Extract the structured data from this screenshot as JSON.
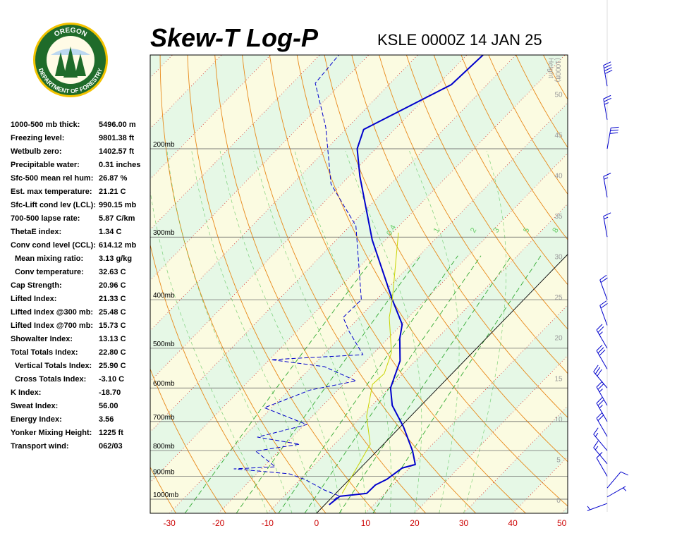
{
  "header": {
    "title": "Skew-T Log-P",
    "station": "KSLE 0000Z 14 JAN 25"
  },
  "logo": {
    "top": "OREGON",
    "bottom": "DEPARTMENT OF FORESTRY"
  },
  "indices": [
    {
      "label": "1000-500 mb thick:",
      "value": "5496.00 m"
    },
    {
      "label": "Freezing level:",
      "value": "9801.38 ft"
    },
    {
      "label": "Wetbulb zero:",
      "value": "1402.57 ft"
    },
    {
      "label": "Precipitable water:",
      "value": "0.31 inches"
    },
    {
      "label": "Sfc-500 mean rel hum:",
      "value": "26.87 %"
    },
    {
      "label": "Est. max temperature:",
      "value": "21.21 C"
    },
    {
      "label": "Sfc-Lift cond lev (LCL):",
      "value": "990.15 mb"
    },
    {
      "label": "700-500 lapse rate:",
      "value": "5.87 C/km"
    },
    {
      "label": "ThetaE index:",
      "value": "1.34 C"
    },
    {
      "label": "Conv cond level (CCL):",
      "value": "614.12 mb"
    },
    {
      "label": "Mean mixing ratio:",
      "value": "3.13 g/kg",
      "indent": true
    },
    {
      "label": "Conv temperature:",
      "value": "32.63 C",
      "indent": true
    },
    {
      "label": "Cap Strength:",
      "value": "20.96 C"
    },
    {
      "label": "Lifted Index:",
      "value": "21.33 C"
    },
    {
      "label": "Lifted Index @300 mb:",
      "value": "25.48 C"
    },
    {
      "label": "Lifted Index @700 mb:",
      "value": "15.73 C"
    },
    {
      "label": "Showalter Index:",
      "value": "13.13 C"
    },
    {
      "label": "Total Totals Index:",
      "value": "22.80 C"
    },
    {
      "label": "Vertical Totals Index:",
      "value": "25.90 C",
      "indent": true
    },
    {
      "label": "Cross Totals Index:",
      "value": "-3.10 C",
      "indent": true
    },
    {
      "label": "K Index:",
      "value": "-18.70"
    },
    {
      "label": "Sweat Index:",
      "value": "56.00"
    },
    {
      "label": "Energy Index:",
      "value": "3.56"
    },
    {
      "label": "Yonker Mixing Height:",
      "value": "1225 ft"
    },
    {
      "label": "Transport wind:",
      "value": "062/03"
    }
  ],
  "chart_data": {
    "type": "skewt",
    "xlim": [
      -33.9,
      51.2
    ],
    "xticks": [
      -30,
      -20,
      -10,
      0,
      10,
      20,
      30,
      40,
      50
    ],
    "ylim": [
      1067,
      130
    ],
    "log_y": true,
    "yticks": [
      {
        "value": 1000,
        "label": "1000mb"
      },
      {
        "value": 900,
        "label": "900mb"
      },
      {
        "value": 800,
        "label": "800mb"
      },
      {
        "value": 700,
        "label": "700mb"
      },
      {
        "value": 600,
        "label": "600mb"
      },
      {
        "value": 500,
        "label": "500mb"
      },
      {
        "value": 400,
        "label": "400mb"
      },
      {
        "value": 300,
        "label": "300mb"
      },
      {
        "value": 200,
        "label": "200mb"
      }
    ],
    "y2label": [
      "Height",
      "(1000ft)"
    ],
    "y2lim": [
      -1.65,
      54.8
    ],
    "y2ticks": [
      0,
      5,
      10,
      15,
      20,
      25,
      30,
      35,
      40,
      45,
      50
    ],
    "mixing_ratios": [
      0.4,
      1,
      2,
      3,
      5,
      8
    ],
    "series": [
      {
        "color": "#0000cc",
        "style": "solid",
        "width": 2,
        "pressure": [
          1026,
          987,
          974,
          937,
          913,
          867,
          853,
          802,
          717,
          650,
          600,
          530,
          478,
          448,
          400,
          304,
          227,
          200,
          183,
          149,
          130
        ],
        "values": [
          0.9,
          1.4,
          6.3,
          6.4,
          7.6,
          8.5,
          10.5,
          7.3,
          0.6,
          -5.9,
          -9.7,
          -13.1,
          -17.6,
          -19.9,
          -26.8,
          -42.7,
          -57.8,
          -63.8,
          -66.3,
          -57.3,
          -56.7
        ]
      },
      {
        "color": "#0000cc",
        "style": "dashed",
        "width": 1,
        "pressure": [
          1026,
          984,
          959,
          913,
          890,
          870,
          862,
          802,
          777,
          752,
          710,
          657,
          606,
          581,
          544,
          527,
          515,
          463,
          434,
          400,
          285,
          235,
          181,
          148,
          130
        ],
        "values": [
          0.9,
          1.0,
          -3.0,
          -9.1,
          -13.4,
          -25.6,
          -17.6,
          -24.7,
          -17.1,
          -27.1,
          -19.5,
          -31.5,
          -25.7,
          -18.1,
          -27.4,
          -39.6,
          -21.9,
          -29.3,
          -33.3,
          -33.1,
          -48.8,
          -62.2,
          -74.5,
          -85.3,
          -86.1
        ]
      },
      {
        "color": "#c8d400",
        "style": "solid",
        "width": 1,
        "pressure": [
          974,
          777,
          683,
          590,
          562,
          510,
          434,
          400,
          294
        ],
        "values": [
          1.3,
          -2.7,
          -9.0,
          -14.1,
          -13.8,
          -16.5,
          -23.9,
          -26.8,
          -38.8
        ]
      }
    ],
    "winds": {
      "pressure": [
        1020,
        990,
        950,
        900,
        850,
        800,
        750,
        700,
        650,
        600,
        550,
        500,
        450,
        400,
        300,
        250,
        200,
        175,
        150
      ],
      "direction": [
        250,
        60,
        40,
        330,
        320,
        320,
        330,
        330,
        330,
        320,
        330,
        330,
        340,
        340,
        350,
        350,
        10,
        350,
        350
      ],
      "speed": [
        3,
        5,
        10,
        10,
        15,
        15,
        20,
        25,
        25,
        30,
        30,
        25,
        20,
        20,
        15,
        15,
        30,
        25,
        40
      ]
    }
  }
}
